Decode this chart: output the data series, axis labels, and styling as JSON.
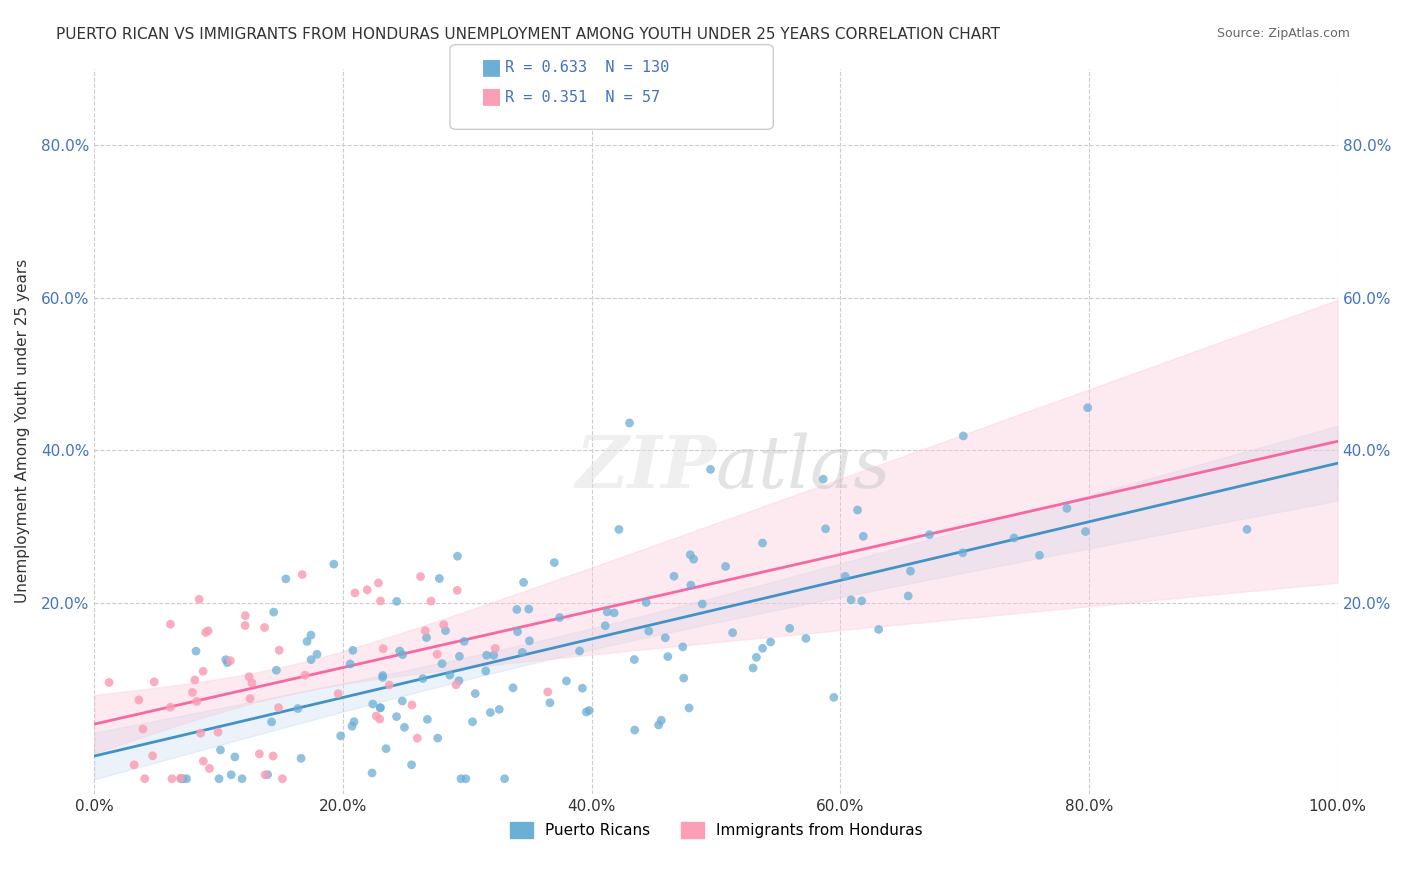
{
  "title": "PUERTO RICAN VS IMMIGRANTS FROM HONDURAS UNEMPLOYMENT AMONG YOUTH UNDER 25 YEARS CORRELATION CHART",
  "source": "Source: ZipAtlas.com",
  "xlabel": "",
  "ylabel": "Unemployment Among Youth under 25 years",
  "xlim": [
    0.0,
    1.0
  ],
  "ylim": [
    -0.05,
    0.9
  ],
  "xtick_labels": [
    "0.0%",
    "20.0%",
    "40.0%",
    "60.0%",
    "80.0%",
    "100.0%"
  ],
  "xtick_vals": [
    0.0,
    0.2,
    0.4,
    0.6,
    0.8,
    1.0
  ],
  "ytick_labels": [
    "20.0%",
    "40.0%",
    "60.0%",
    "80.0%"
  ],
  "ytick_vals": [
    0.2,
    0.4,
    0.6,
    0.8
  ],
  "blue_color": "#6baed6",
  "blue_line_color": "#4292c6",
  "pink_color": "#fa9fb5",
  "pink_line_color": "#f768a1",
  "blue_fill_color": "#c6dbef",
  "pink_fill_color": "#fcc5d8",
  "watermark": "ZIPatlas",
  "legend_blue_r": "0.633",
  "legend_blue_n": "130",
  "legend_pink_r": "0.351",
  "legend_pink_n": "57",
  "seed": 42,
  "n_blue": 130,
  "n_pink": 57,
  "blue_r": 0.633,
  "pink_r": 0.351
}
